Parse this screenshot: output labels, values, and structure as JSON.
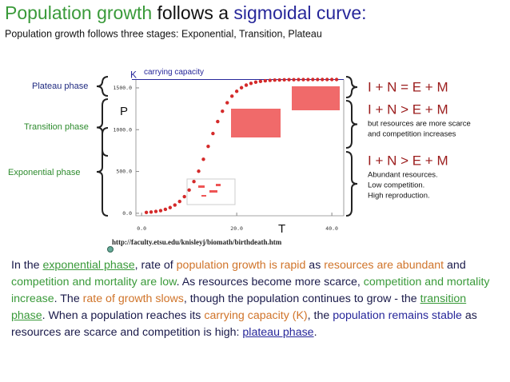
{
  "title": {
    "segments": [
      {
        "text": "Population growth",
        "color": "#3a9a3a"
      },
      {
        "text": " follows a ",
        "color": "#111111"
      },
      {
        "text": "sigmoidal curve:",
        "color": "#27279a"
      }
    ]
  },
  "subtitle": "Population growth follows three stages: Exponential, Transition, Plateau",
  "phases": [
    {
      "label": "Plateau phase",
      "color": "#1f2a80"
    },
    {
      "label": "Transition phase",
      "color": "#2e8b2e"
    },
    {
      "label": "Exponential phase",
      "color": "#2e8b2e"
    }
  ],
  "equations": [
    {
      "text": "I + N = E + M",
      "notes": []
    },
    {
      "text": "I + N > E + M",
      "notes": [
        "but resources are more scarce",
        "and competition increases"
      ]
    },
    {
      "text": "I + N > E + M",
      "notes": [
        "Abundant resources.",
        "Low competition.",
        "High reproduction."
      ]
    }
  ],
  "source": "http://faculty.etsu.edu/knisleyj/biomath/birthdeath.htm",
  "chart_data": {
    "type": "scatter",
    "color": "#d42a2a",
    "x_label": "T",
    "y_label": "P",
    "annotations": {
      "k": "K",
      "capacity_label": "carrying capacity",
      "capacity": 1600
    },
    "x": [
      1,
      2,
      3,
      4,
      5,
      6,
      7,
      8,
      9,
      10,
      11,
      12,
      13,
      14,
      15,
      16,
      17,
      18,
      19,
      20,
      21,
      22,
      23,
      24,
      25,
      26,
      27,
      28,
      29,
      30,
      31,
      32,
      33,
      34,
      35,
      36,
      37,
      38,
      39,
      40,
      41
    ],
    "values": [
      10,
      15,
      22,
      32,
      47,
      68,
      98,
      141,
      199,
      278,
      379,
      503,
      646,
      800,
      954,
      1097,
      1221,
      1322,
      1401,
      1459,
      1502,
      1533,
      1554,
      1568,
      1578,
      1585,
      1590,
      1593,
      1595,
      1597,
      1598,
      1598,
      1599,
      1599,
      1599,
      1600,
      1600,
      1600,
      1600,
      1600,
      1600
    ],
    "xlim": [
      -1.2,
      42.5
    ],
    "ylim": [
      -30,
      1600
    ],
    "xticks": [
      {
        "value": 0,
        "label": "0.0"
      },
      {
        "value": 20,
        "label": "20.0"
      },
      {
        "value": 40,
        "label": "40.0"
      }
    ],
    "yticks": [
      {
        "value": 0,
        "label": "0.0"
      },
      {
        "value": 500,
        "label": "500.0"
      },
      {
        "value": 1000,
        "label": "1000.0"
      },
      {
        "value": 1500,
        "label": "1500.0"
      }
    ]
  },
  "body": {
    "segments": [
      {
        "text": "In the ",
        "color": "#1a1a4a"
      },
      {
        "text": "exponential phase",
        "color": "#3a9a3a",
        "underline": true
      },
      {
        "text": ", rate of ",
        "color": "#1a1a4a"
      },
      {
        "text": "population growth is rapid",
        "color": "#d0742a"
      },
      {
        "text": " as ",
        "color": "#1a1a4a"
      },
      {
        "text": "resources are abundant",
        "color": "#d0742a"
      },
      {
        "text": " and ",
        "color": "#1a1a4a"
      },
      {
        "text": "competition and mortality are low",
        "color": "#3a9a3a"
      },
      {
        "text": ". As resources become more scarce, ",
        "color": "#1a1a4a"
      },
      {
        "text": "competition and mortality increase",
        "color": "#3a9a3a"
      },
      {
        "text": ". The ",
        "color": "#1a1a4a"
      },
      {
        "text": "rate of growth slows",
        "color": "#d0742a"
      },
      {
        "text": ", though the population continues to grow - the ",
        "color": "#1a1a4a"
      },
      {
        "text": "transition phase",
        "color": "#3a9a3a",
        "underline": true
      },
      {
        "text": ". When a population reaches its ",
        "color": "#1a1a4a"
      },
      {
        "text": "carrying capacity (K)",
        "color": "#d0742a"
      },
      {
        "text": ", the ",
        "color": "#1a1a4a"
      },
      {
        "text": "population remains stable",
        "color": "#27279a"
      },
      {
        "text": " as resources are scarce and competition is high: ",
        "color": "#1a1a4a"
      },
      {
        "text": "plateau phase",
        "color": "#27279a",
        "underline": true
      },
      {
        "text": ".",
        "color": "#1a1a4a"
      }
    ]
  }
}
